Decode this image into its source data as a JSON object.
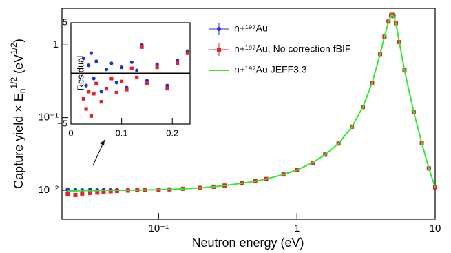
{
  "chart_data": [
    {
      "type": "scatter",
      "x_label": "Neutron energy (eV)",
      "y_label": [
        "Capture yield × E",
        "n",
        "1/2",
        " (eV",
        "1/2",
        ")"
      ],
      "xscale": "log",
      "yscale": "log",
      "xlim": [
        0.02,
        10
      ],
      "ylim": [
        0.004,
        3.2
      ],
      "xticks": [
        {
          "value": 0.1,
          "label": "10⁻¹"
        },
        1,
        10
      ],
      "yticks": [
        {
          "value": 0.01,
          "label": "10⁻²"
        },
        {
          "value": 0.1,
          "label": "10⁻¹"
        },
        1
      ],
      "x": [
        0.022,
        0.025,
        0.028,
        0.032,
        0.036,
        0.04,
        0.045,
        0.05,
        0.06,
        0.07,
        0.08,
        0.1,
        0.12,
        0.15,
        0.2,
        0.25,
        0.3,
        0.4,
        0.5,
        0.6,
        0.8,
        1,
        1.3,
        1.6,
        2,
        2.5,
        3,
        3.5,
        4,
        4.3,
        4.6,
        4.8,
        4.9,
        5,
        5.2,
        5.5,
        6,
        7,
        8,
        9,
        10
      ],
      "series": [
        {
          "name": "n+¹⁹⁷Au",
          "type": "scatter",
          "marker": "circle",
          "color": "#1f2fd8",
          "values": [
            0.0102,
            0.0101,
            0.01,
            0.0102,
            0.01,
            0.0101,
            0.01,
            0.0101,
            0.01,
            0.0101,
            0.0102,
            0.0102,
            0.0103,
            0.0105,
            0.0108,
            0.0112,
            0.0116,
            0.0125,
            0.0133,
            0.0143,
            0.0165,
            0.019,
            0.024,
            0.031,
            0.044,
            0.075,
            0.14,
            0.3,
            0.75,
            1.3,
            2.1,
            2.55,
            2.6,
            2.5,
            2.0,
            1.1,
            0.45,
            0.12,
            0.045,
            0.02,
            0.011
          ]
        },
        {
          "name": "n+¹⁹⁷Au, No correction fBIF",
          "type": "scatter",
          "marker": "square",
          "color": "#e8202a",
          "values": [
            0.0088,
            0.0086,
            0.009,
            0.0092,
            0.0093,
            0.0095,
            0.0097,
            0.0098,
            0.0099,
            0.01,
            0.0101,
            0.0102,
            0.0103,
            0.0105,
            0.0108,
            0.0112,
            0.0116,
            0.0125,
            0.0133,
            0.0143,
            0.0165,
            0.019,
            0.024,
            0.031,
            0.044,
            0.075,
            0.14,
            0.3,
            0.75,
            1.3,
            2.1,
            2.55,
            2.6,
            2.5,
            2.0,
            1.1,
            0.45,
            0.12,
            0.045,
            0.02,
            0.011
          ]
        },
        {
          "name": "n+¹⁹⁷Au JEFF3.3",
          "type": "line",
          "color": "#33e833",
          "values": [
            0.0098,
            0.0098,
            0.0099,
            0.0099,
            0.0099,
            0.01,
            0.01,
            0.01,
            0.01,
            0.0101,
            0.0101,
            0.0102,
            0.0103,
            0.0105,
            0.0108,
            0.0112,
            0.0116,
            0.0125,
            0.0133,
            0.0143,
            0.0165,
            0.019,
            0.024,
            0.031,
            0.044,
            0.075,
            0.14,
            0.3,
            0.75,
            1.3,
            2.1,
            2.55,
            2.6,
            2.5,
            2.0,
            1.1,
            0.45,
            0.12,
            0.045,
            0.02,
            0.011
          ]
        }
      ]
    },
    {
      "type": "scatter",
      "y_label": "Residual",
      "xlim": [
        0,
        0.235
      ],
      "ylim": [
        -5,
        5
      ],
      "xticks": [
        0,
        0.1,
        0.2
      ],
      "yticks": [
        {
          "value": -5,
          "label": "−5"
        },
        5
      ],
      "reference_line": 0,
      "x": [
        0.025,
        0.03,
        0.035,
        0.04,
        0.045,
        0.05,
        0.06,
        0.07,
        0.08,
        0.09,
        0.1,
        0.11,
        0.12,
        0.13,
        0.14,
        0.15,
        0.17,
        0.19,
        0.21,
        0.23
      ],
      "series": [
        {
          "name": "n+¹⁹⁷Au",
          "marker": "circle",
          "color": "#1f2fd8",
          "values": [
            1.5,
            -1.2,
            0.8,
            2.0,
            -0.5,
            1.2,
            -1.8,
            0.4,
            1.0,
            -0.9,
            0.6,
            -1.4,
            1.1,
            0.3,
            2.8,
            -0.7,
            0.9,
            -1.2,
            1.3,
            2.2
          ]
        },
        {
          "name": "n+¹⁹⁷Au, No correction fBIF",
          "marker": "square",
          "color": "#e8202a",
          "values": [
            -2.5,
            -3.5,
            -1.8,
            -4.2,
            -2.0,
            -1.0,
            -2.8,
            -1.5,
            -0.5,
            -1.9,
            -0.8,
            -1.6,
            0.5,
            -0.4,
            2.6,
            -1.0,
            0.6,
            -1.5,
            1.0,
            2.0
          ]
        }
      ]
    }
  ]
}
